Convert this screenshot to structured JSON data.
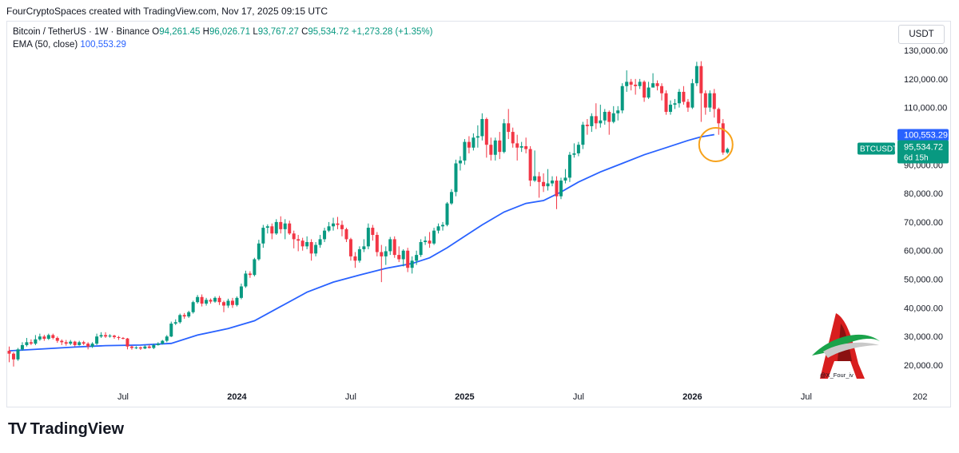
{
  "header": {
    "attribution": "FourCryptoSpaces created with TradingView.com, Nov 17, 2025 09:15 UTC"
  },
  "legend": {
    "symbol": "Bitcoin / TetherUS · 1W · Binance",
    "o_label": "O",
    "o_value": "94,261.45",
    "h_label": "H",
    "h_value": "96,026.71",
    "l_label": "L",
    "l_value": "93,767.27",
    "c_label": "C",
    "c_value": "95,534.72",
    "change": "+1,273.28 (+1.35%)",
    "ema_label": "EMA (50, close)",
    "ema_value": "100,553.29"
  },
  "currency_button": "USDT",
  "footer": {
    "brand": "TradingView",
    "brand_mark": "TV"
  },
  "watermark": {
    "handle": "@X_Four_iv"
  },
  "colors": {
    "up": "#089981",
    "down": "#f23645",
    "ema": "#2962ff",
    "highlight": "#f7a21b"
  },
  "chart_data": {
    "type": "candlestick",
    "title": "Bitcoin / TetherUS · 1W · Binance",
    "y_tick_labels": [
      "130,000.00",
      "120,000.00",
      "110,000.00",
      "100,000.00",
      "90,000.00",
      "80,000.00",
      "70,000.00",
      "60,000.00",
      "50,000.00",
      "40,000.00",
      "30,000.00",
      "20,000.00"
    ],
    "y_ticks": [
      130000,
      120000,
      110000,
      100000,
      90000,
      80000,
      70000,
      60000,
      50000,
      40000,
      30000,
      20000
    ],
    "ylim": [
      12000,
      138000
    ],
    "x_tick_labels": [
      "Jul",
      "2024",
      "Jul",
      "2025",
      "Jul",
      "2026",
      "Jul",
      "202"
    ],
    "x_tick_weeks": [
      26,
      52,
      78,
      104,
      130,
      156,
      182,
      208
    ],
    "x_bold_ticks": [
      "2024",
      "2025",
      "2026"
    ],
    "last_price_tag": {
      "label": "BTCUSDT",
      "price": "95,534.72",
      "countdown": "6d 15h",
      "value": 95534.72
    },
    "ema_tag": {
      "price": "100,553.29",
      "value": 100553.29
    },
    "highlight": {
      "week": 161,
      "value": 96500,
      "label": "last candle circle"
    },
    "candles": [
      [
        25000,
        24000,
        26500,
        21000
      ],
      [
        24000,
        22000,
        24500,
        19500
      ],
      [
        22000,
        25500,
        26000,
        21500
      ],
      [
        25500,
        27000,
        28000,
        25000
      ],
      [
        27000,
        28000,
        29500,
        26500
      ],
      [
        28000,
        27500,
        29000,
        27000
      ],
      [
        27500,
        29000,
        30500,
        27000
      ],
      [
        29000,
        30000,
        31000,
        28500
      ],
      [
        30000,
        29200,
        30600,
        28500
      ],
      [
        29200,
        30500,
        31000,
        28800
      ],
      [
        30500,
        29500,
        31000,
        29000
      ],
      [
        29500,
        28500,
        30000,
        27800
      ],
      [
        28500,
        28000,
        29000,
        27000
      ],
      [
        28000,
        27500,
        28800,
        26800
      ],
      [
        27500,
        28200,
        28800,
        27000
      ],
      [
        28200,
        27000,
        28500,
        26500
      ],
      [
        27000,
        28000,
        28500,
        26800
      ],
      [
        28000,
        27500,
        28500,
        27000
      ],
      [
        27500,
        26500,
        28000,
        25500
      ],
      [
        26500,
        27500,
        28000,
        26000
      ],
      [
        27500,
        30000,
        31000,
        27000
      ],
      [
        30000,
        30500,
        31500,
        29500
      ],
      [
        30500,
        30000,
        31500,
        29500
      ],
      [
        30000,
        30300,
        30800,
        29600
      ],
      [
        30300,
        29800,
        30600,
        29200
      ],
      [
        29800,
        29500,
        30200,
        28800
      ],
      [
        29500,
        29300,
        29800,
        29000
      ],
      [
        29300,
        26500,
        29500,
        25500
      ],
      [
        26500,
        26000,
        26800,
        25400
      ],
      [
        26000,
        26200,
        26600,
        25600
      ],
      [
        26200,
        25800,
        26500,
        25300
      ],
      [
        25800,
        26500,
        27000,
        25600
      ],
      [
        26500,
        26000,
        27200,
        25800
      ],
      [
        26000,
        27000,
        27500,
        25600
      ],
      [
        27000,
        27500,
        28000,
        26800
      ],
      [
        27500,
        28500,
        28800,
        27200
      ],
      [
        28500,
        30000,
        30500,
        28000
      ],
      [
        30000,
        34500,
        35200,
        29800
      ],
      [
        34500,
        35000,
        36000,
        34000
      ],
      [
        35000,
        37500,
        38000,
        34500
      ],
      [
        37500,
        37000,
        38200,
        36200
      ],
      [
        37000,
        38500,
        39000,
        36500
      ],
      [
        38500,
        42000,
        42500,
        38000
      ],
      [
        42000,
        43800,
        44500,
        41500
      ],
      [
        43800,
        41500,
        44700,
        40500
      ],
      [
        41500,
        42800,
        43500,
        40800
      ],
      [
        42800,
        42200,
        43300,
        41500
      ],
      [
        42200,
        43500,
        44000,
        41800
      ],
      [
        43500,
        42000,
        44200,
        41000
      ],
      [
        42000,
        40800,
        42500,
        38500
      ],
      [
        40800,
        42500,
        43200,
        40000
      ],
      [
        42500,
        41000,
        43500,
        40000
      ],
      [
        41000,
        43500,
        44000,
        40500
      ],
      [
        43500,
        47500,
        48500,
        43000
      ],
      [
        47500,
        52000,
        53000,
        47000
      ],
      [
        52000,
        51500,
        52800,
        50500
      ],
      [
        51500,
        57000,
        57500,
        51000
      ],
      [
        57000,
        62500,
        63800,
        56500
      ],
      [
        62500,
        68000,
        69000,
        61000
      ],
      [
        68000,
        68500,
        69200,
        66000
      ],
      [
        68500,
        66000,
        69500,
        64000
      ],
      [
        66000,
        70000,
        71000,
        65500
      ],
      [
        70000,
        67500,
        72000,
        66000
      ],
      [
        67500,
        69500,
        71000,
        64000
      ],
      [
        69500,
        66000,
        70500,
        65500
      ],
      [
        66000,
        64000,
        67000,
        60800
      ],
      [
        64000,
        63500,
        65500,
        59800
      ],
      [
        63500,
        61500,
        64500,
        60000
      ],
      [
        61500,
        63000,
        65000,
        60500
      ],
      [
        63000,
        59000,
        64000,
        56500
      ],
      [
        59000,
        62000,
        63000,
        58000
      ],
      [
        62000,
        64000,
        65500,
        61000
      ],
      [
        64000,
        67000,
        68000,
        63000
      ],
      [
        67000,
        68500,
        70000,
        66500
      ],
      [
        68500,
        69500,
        71500,
        67000
      ],
      [
        69500,
        69000,
        71800,
        67500
      ],
      [
        69000,
        67500,
        70500,
        65000
      ],
      [
        67500,
        64000,
        68000,
        63000
      ],
      [
        64000,
        58000,
        64500,
        56500
      ],
      [
        58000,
        56500,
        59500,
        54000
      ],
      [
        56500,
        60500,
        61500,
        55800
      ],
      [
        60500,
        61500,
        64000,
        59500
      ],
      [
        61500,
        68000,
        69500,
        60500
      ],
      [
        68000,
        65500,
        69000,
        63500
      ],
      [
        65500,
        59500,
        66500,
        58000
      ],
      [
        59500,
        58000,
        62000,
        49000
      ],
      [
        58000,
        59800,
        61500,
        55000
      ],
      [
        59800,
        64000,
        64800,
        58500
      ],
      [
        64000,
        58500,
        65000,
        57500
      ],
      [
        58500,
        57000,
        61500,
        56000
      ],
      [
        57000,
        60000,
        60500,
        54500
      ],
      [
        60000,
        54000,
        61000,
        52500
      ],
      [
        54000,
        56500,
        58000,
        52000
      ],
      [
        56500,
        58500,
        60000,
        55000
      ],
      [
        58500,
        63000,
        64000,
        57800
      ],
      [
        63000,
        63500,
        65000,
        62000
      ],
      [
        63500,
        62500,
        66500,
        61000
      ],
      [
        62500,
        67000,
        68000,
        62000
      ],
      [
        67000,
        68500,
        69500,
        66000
      ],
      [
        68500,
        69000,
        70000,
        67000
      ],
      [
        69000,
        76500,
        77000,
        68500
      ],
      [
        76500,
        80500,
        81500,
        76000
      ],
      [
        80500,
        90500,
        91800,
        79000
      ],
      [
        90500,
        91500,
        93000,
        88000
      ],
      [
        91500,
        98000,
        99000,
        90000
      ],
      [
        98000,
        96000,
        100000,
        94000
      ],
      [
        96000,
        99500,
        101000,
        95000
      ],
      [
        99500,
        100000,
        103800,
        96000
      ],
      [
        100000,
        106000,
        108000,
        98500
      ],
      [
        106000,
        97000,
        106500,
        92500
      ],
      [
        97000,
        93500,
        99500,
        91500
      ],
      [
        93500,
        98500,
        99500,
        91500
      ],
      [
        98500,
        94500,
        101500,
        92000
      ],
      [
        94500,
        104500,
        106000,
        94000
      ],
      [
        104500,
        101500,
        109500,
        99000
      ],
      [
        101500,
        97500,
        103000,
        96000
      ],
      [
        97500,
        96000,
        100500,
        91500
      ],
      [
        96000,
        96500,
        98000,
        94500
      ],
      [
        96500,
        95500,
        99500,
        94000
      ],
      [
        95500,
        84500,
        96500,
        82500
      ],
      [
        84500,
        86000,
        95000,
        84000
      ],
      [
        86000,
        84000,
        87500,
        78500
      ],
      [
        84000,
        82500,
        87000,
        80500
      ],
      [
        82500,
        83500,
        88500,
        81000
      ],
      [
        83500,
        84500,
        86000,
        82500
      ],
      [
        84500,
        79000,
        86000,
        74500
      ],
      [
        79000,
        84500,
        85500,
        78000
      ],
      [
        84500,
        85500,
        88500,
        83500
      ],
      [
        85500,
        93500,
        94500,
        84000
      ],
      [
        93500,
        94000,
        97500,
        92500
      ],
      [
        94000,
        97000,
        98000,
        93000
      ],
      [
        97000,
        104000,
        105000,
        95500
      ],
      [
        104000,
        103500,
        106000,
        100500
      ],
      [
        103500,
        107000,
        108000,
        101500
      ],
      [
        107000,
        104500,
        111500,
        102500
      ],
      [
        104500,
        105500,
        111000,
        103000
      ],
      [
        105500,
        108500,
        109500,
        104000
      ],
      [
        108500,
        105000,
        109000,
        100500
      ],
      [
        105000,
        108000,
        110500,
        104500
      ],
      [
        108000,
        109000,
        110500,
        105500
      ],
      [
        109000,
        117500,
        118500,
        108000
      ],
      [
        117500,
        119000,
        123000,
        115500
      ],
      [
        119000,
        118000,
        120000,
        116000
      ],
      [
        118000,
        117500,
        120000,
        114500
      ],
      [
        117500,
        119000,
        120000,
        116500
      ],
      [
        119000,
        113500,
        119500,
        112000
      ],
      [
        113500,
        117000,
        119000,
        113000
      ],
      [
        117000,
        118500,
        122000,
        117000
      ],
      [
        118500,
        117500,
        119500,
        116000
      ],
      [
        117500,
        115000,
        118500,
        112500
      ],
      [
        115000,
        108500,
        116000,
        107500
      ],
      [
        108500,
        111000,
        112500,
        107500
      ],
      [
        111000,
        111500,
        113000,
        109500
      ],
      [
        111500,
        115500,
        116500,
        110000
      ],
      [
        115500,
        112000,
        117500,
        111000
      ],
      [
        112000,
        110000,
        113000,
        108500
      ],
      [
        110000,
        118500,
        120000,
        109500
      ],
      [
        118500,
        124500,
        126000,
        117500
      ],
      [
        124500,
        115000,
        126200,
        105000
      ],
      [
        115000,
        110000,
        116000,
        107500
      ],
      [
        110000,
        115000,
        116000,
        108500
      ],
      [
        115000,
        109500,
        116500,
        106500
      ],
      [
        109500,
        104500,
        110000,
        100500
      ],
      [
        104500,
        94300,
        106000,
        93500
      ],
      [
        94300,
        95500,
        96000,
        93800
      ]
    ],
    "ema": [
      [
        0,
        25000
      ],
      [
        8,
        25700
      ],
      [
        15,
        26300
      ],
      [
        22,
        26800
      ],
      [
        30,
        27000
      ],
      [
        37,
        27600
      ],
      [
        43,
        30500
      ],
      [
        50,
        32800
      ],
      [
        56,
        35500
      ],
      [
        62,
        40500
      ],
      [
        68,
        45500
      ],
      [
        74,
        49000
      ],
      [
        80,
        51500
      ],
      [
        86,
        53800
      ],
      [
        92,
        55500
      ],
      [
        96,
        57500
      ],
      [
        100,
        61000
      ],
      [
        104,
        65000
      ],
      [
        108,
        69000
      ],
      [
        113,
        73500
      ],
      [
        118,
        76500
      ],
      [
        122,
        77500
      ],
      [
        126,
        80500
      ],
      [
        130,
        84000
      ],
      [
        135,
        87500
      ],
      [
        140,
        90500
      ],
      [
        145,
        93500
      ],
      [
        150,
        96000
      ],
      [
        155,
        98500
      ],
      [
        158,
        99800
      ],
      [
        161,
        100553.29
      ]
    ]
  }
}
